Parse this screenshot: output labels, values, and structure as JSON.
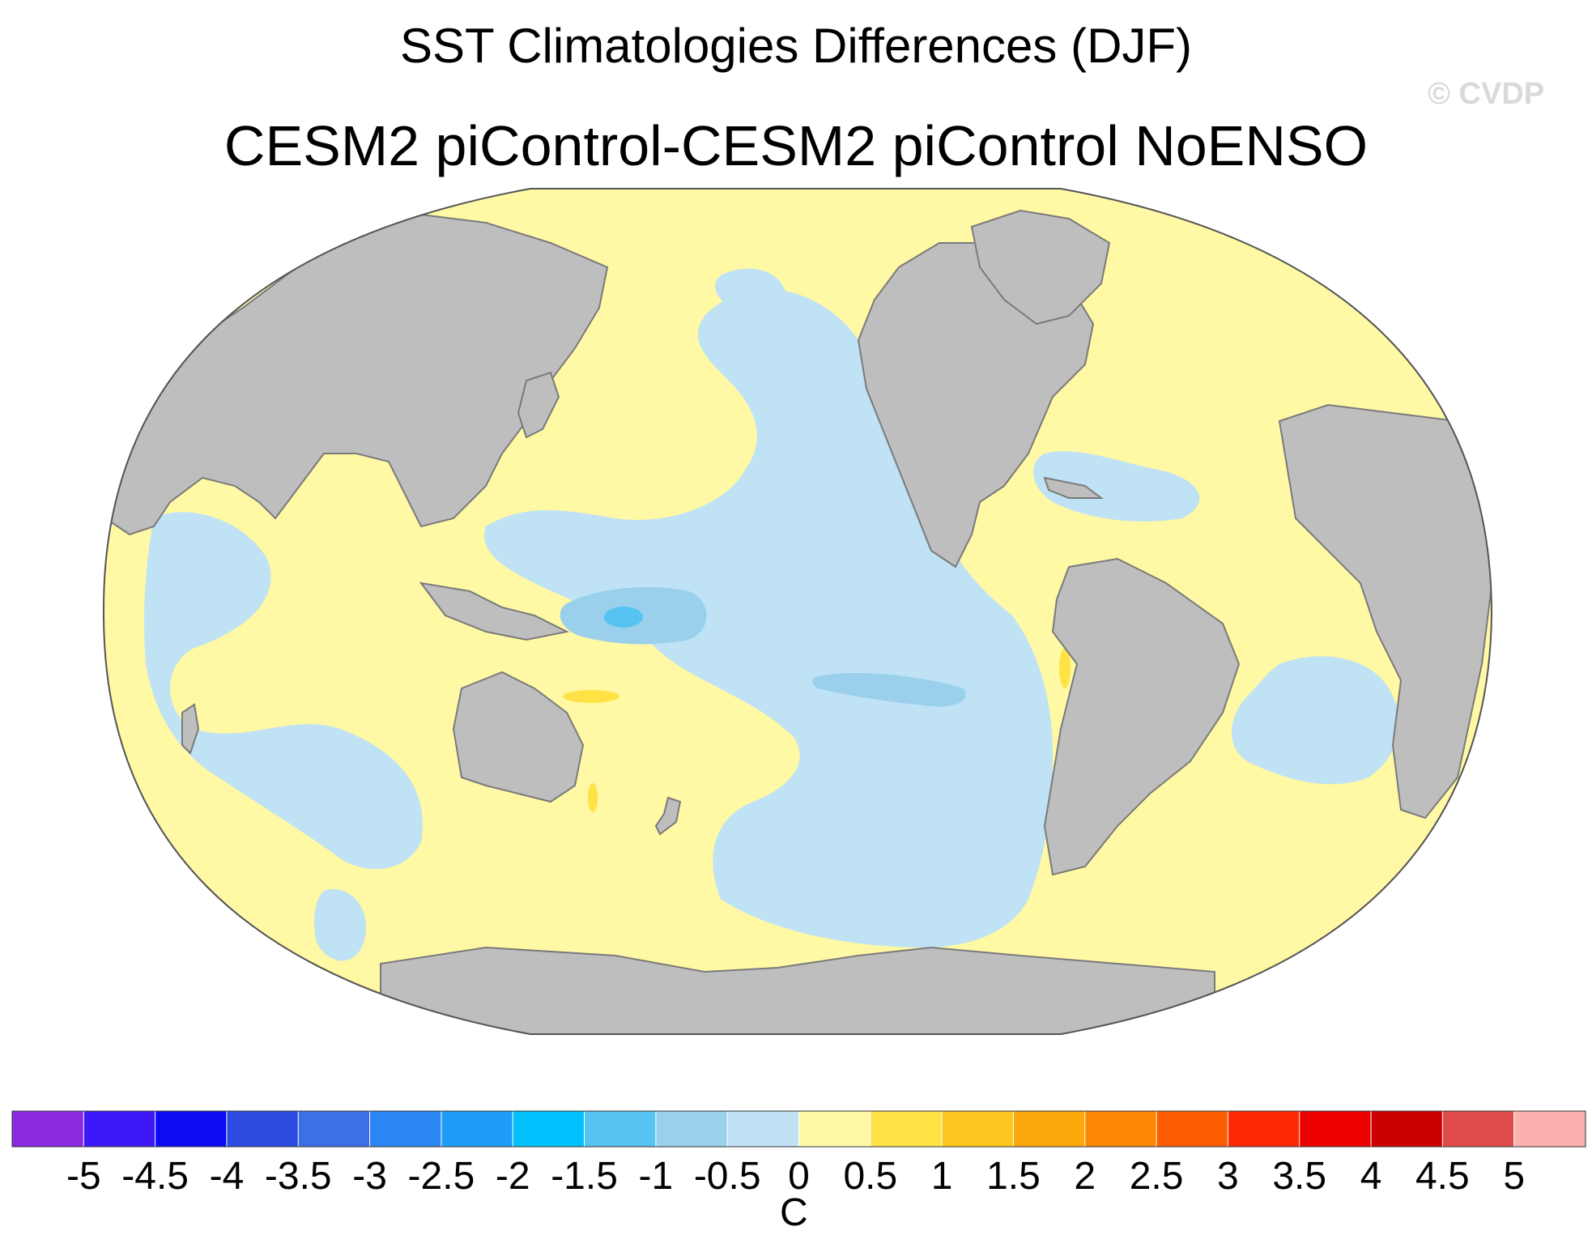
{
  "title": "SST Climatologies Differences (DJF)",
  "subtitle": "CESM2 piControl-CESM2 piControl NoENSO",
  "watermark": "© CVDP",
  "colorbar": {
    "unit": "C",
    "ticks": [
      "-5",
      "-4.5",
      "-4",
      "-3.5",
      "-3",
      "-2.5",
      "-2",
      "-1.5",
      "-1",
      "-0.5",
      "0",
      "0.5",
      "1",
      "1.5",
      "2",
      "2.5",
      "3",
      "3.5",
      "4",
      "4.5",
      "5"
    ],
    "colors": [
      "#8a2be2",
      "#3f18f7",
      "#0c0cf2",
      "#2e4be0",
      "#3d6fe6",
      "#2a86f2",
      "#1e9cf7",
      "#00c1fb",
      "#56c3f0",
      "#9ad0ec",
      "#bfe2f5",
      "#fff8a5",
      "#ffe346",
      "#fdc61e",
      "#fca70a",
      "#fc8702",
      "#fd5e03",
      "#fd2a04",
      "#ef0000",
      "#cc0000",
      "#dd4b4b",
      "#fdb0b0"
    ]
  },
  "map": {
    "land_color": "#bebebe",
    "ocean_base_color": "#fff8a5"
  }
}
